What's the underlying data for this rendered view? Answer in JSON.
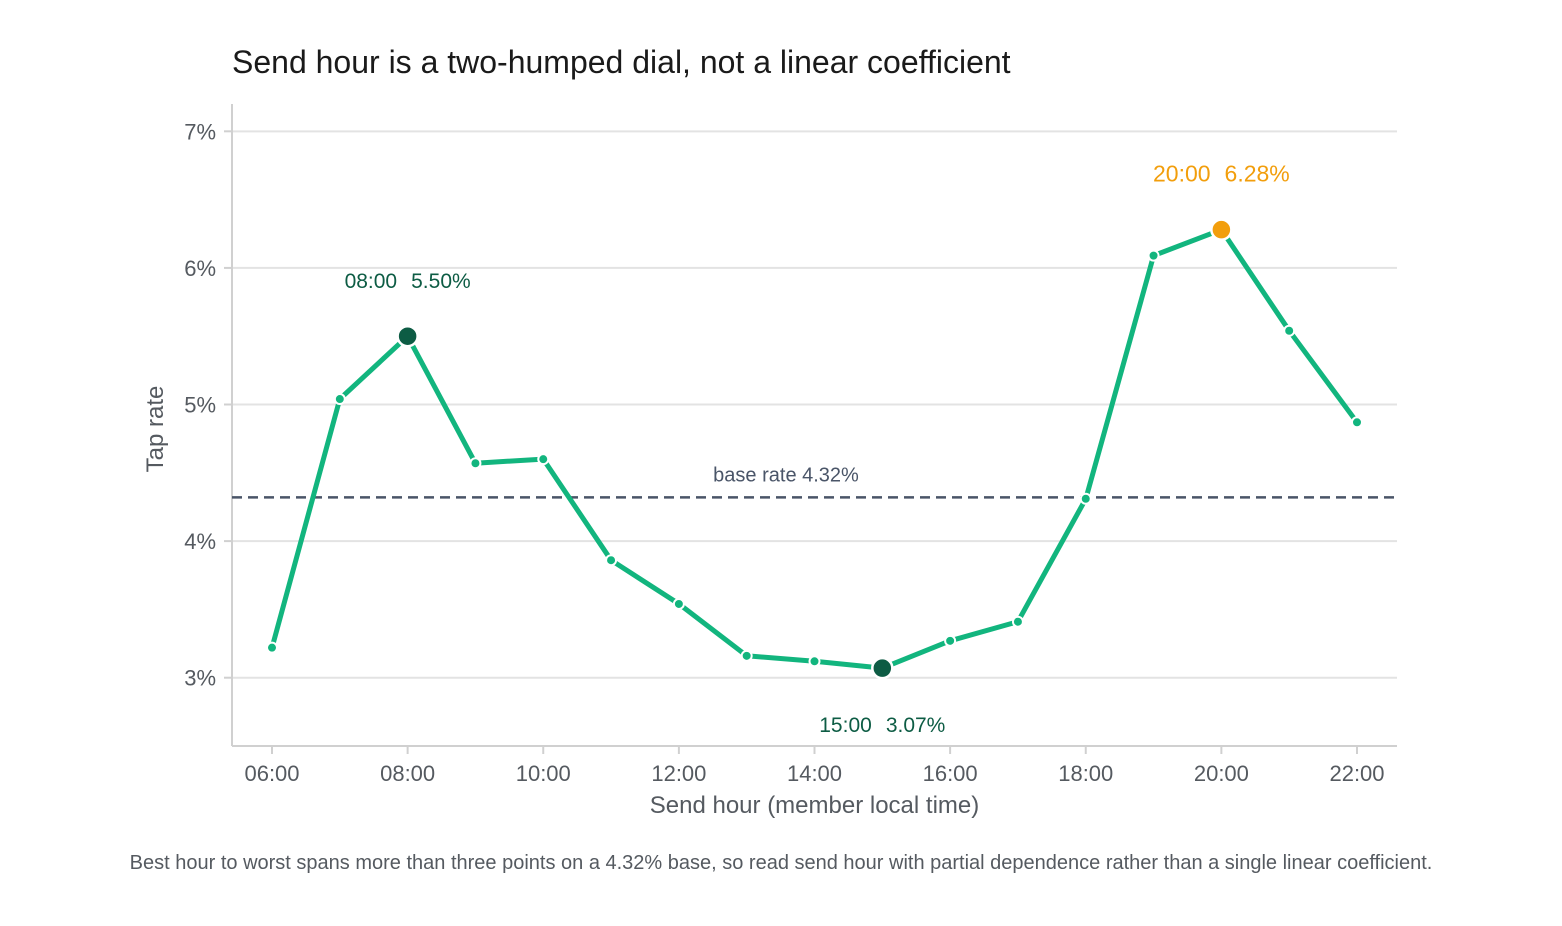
{
  "chart_data": {
    "type": "line",
    "title": "Send hour is a two-humped dial, not a linear coefficient",
    "xlabel": "Send hour (member local time)",
    "ylabel": "Tap rate",
    "x": [
      "06:00",
      "07:00",
      "08:00",
      "09:00",
      "10:00",
      "11:00",
      "12:00",
      "13:00",
      "14:00",
      "15:00",
      "16:00",
      "17:00",
      "18:00",
      "19:00",
      "20:00",
      "21:00",
      "22:00"
    ],
    "series": [
      {
        "values": [
          3.22,
          5.04,
          5.5,
          4.57,
          4.6,
          3.86,
          3.54,
          3.16,
          3.12,
          3.07,
          3.27,
          3.41,
          4.31,
          6.09,
          6.28,
          5.54,
          4.87
        ]
      }
    ],
    "x_ticks": [
      "06:00",
      "08:00",
      "10:00",
      "12:00",
      "14:00",
      "16:00",
      "18:00",
      "20:00",
      "22:00"
    ],
    "y_ticks": [
      3,
      4,
      5,
      6,
      7
    ],
    "y_tick_labels": [
      "3%",
      "4%",
      "5%",
      "6%",
      "7%"
    ],
    "ylim": [
      2.5,
      7.2
    ],
    "grid": "horizontal",
    "reference_line": {
      "value": 4.32,
      "label": "base rate 4.32%"
    },
    "annotations": [
      {
        "x": "08:00",
        "value": 5.5,
        "hour_text": "08:00",
        "value_text": "5.50%",
        "role": "morning-peak",
        "position": "above"
      },
      {
        "x": "15:00",
        "value": 3.07,
        "hour_text": "15:00",
        "value_text": "3.07%",
        "role": "trough",
        "position": "below"
      },
      {
        "x": "20:00",
        "value": 6.28,
        "hour_text": "20:00",
        "value_text": "6.28%",
        "role": "evening-peak",
        "position": "above"
      }
    ],
    "colors": {
      "line": "#12b57e",
      "highlight_dark": "#0d5c44",
      "highlight_peak": "#f29e0c",
      "reference": "#4a5568",
      "grid": "#e3e3e3",
      "axis": "#d0d0d0"
    }
  },
  "caption": "Best hour to worst spans more than three points on a 4.32% base, so read send hour with partial dependence rather than a single linear coefficient."
}
